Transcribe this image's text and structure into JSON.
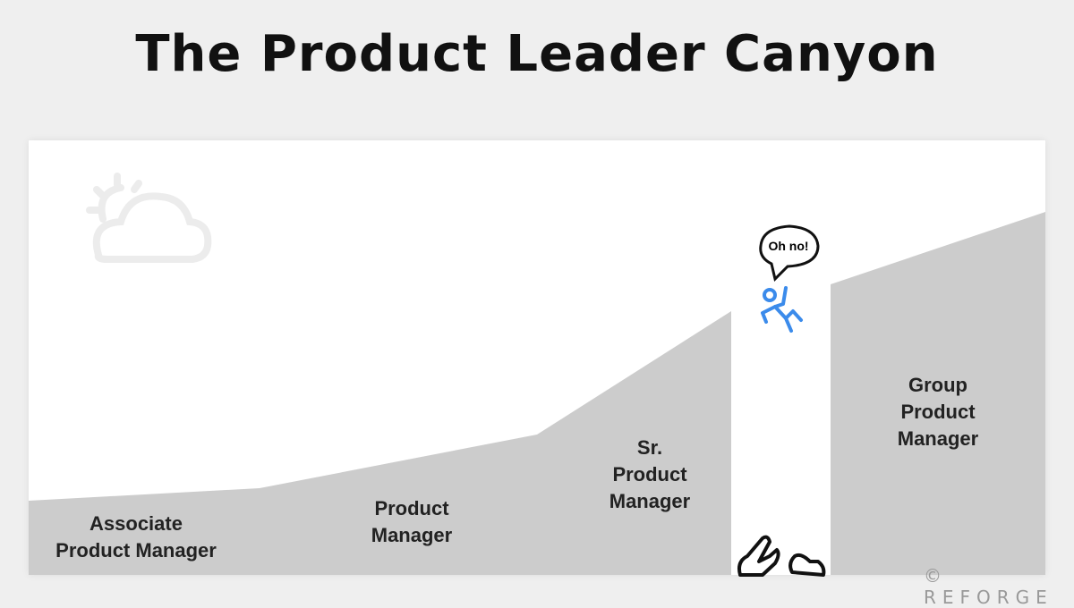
{
  "title": "The Product Leader Canyon",
  "levels": [
    {
      "label_lines": [
        "Associate",
        "Product Manager"
      ]
    },
    {
      "label_lines": [
        "Product",
        "Manager"
      ]
    },
    {
      "label_lines": [
        "Sr.",
        "Product",
        "Manager"
      ]
    },
    {
      "label_lines": [
        "Group",
        "Product",
        "Manager"
      ]
    }
  ],
  "speech_bubble": "Oh no!",
  "icons": [
    "sun-cloud-icon",
    "falling-person-icon",
    "crocodile-icon"
  ],
  "colors": {
    "background": "#efefef",
    "terrain": "#cccccc",
    "person": "#3b8beb"
  },
  "brand": {
    "symbol": "©",
    "name": "REFORGE"
  }
}
